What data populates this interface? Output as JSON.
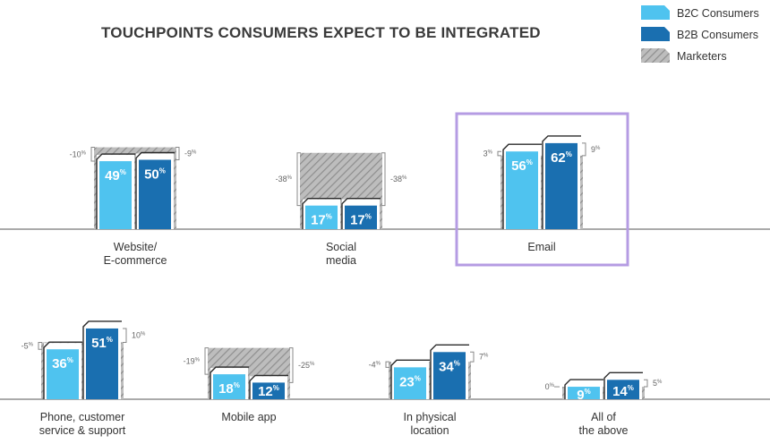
{
  "title": "TOUCHPOINTS CONSUMERS EXPECT TO BE INTEGRATED",
  "colors": {
    "b2c": "#4fc3ef",
    "b2b": "#1a6fb0",
    "marketers_fill": "#bdbdbd",
    "marketers_hatch": "#8e8e8e",
    "highlight": "#b59ce3",
    "axis": "#555555",
    "label": "#333333",
    "diff": "#666666"
  },
  "legend": [
    {
      "key": "b2c",
      "label": "B2C Consumers"
    },
    {
      "key": "b2b",
      "label": "B2B Consumers"
    },
    {
      "key": "marketers",
      "label": "Marketers"
    }
  ],
  "highlighted_category": "Email",
  "chart_data": {
    "type": "bar",
    "title": "TOUCHPOINTS CONSUMERS EXPECT TO BE INTEGRATED",
    "unit": "%",
    "ylim": [
      0,
      70
    ],
    "series": [
      {
        "name": "B2C Consumers",
        "key": "b2c",
        "values": [
          49,
          17,
          56,
          36,
          18,
          23,
          9
        ]
      },
      {
        "name": "B2B Consumers",
        "key": "b2b",
        "values": [
          50,
          17,
          62,
          51,
          12,
          34,
          14
        ]
      },
      {
        "name": "Marketers",
        "key": "marketers",
        "values": [
          59,
          55,
          53,
          41,
          37,
          27,
          9
        ]
      }
    ],
    "categories": [
      {
        "lines": [
          "Website/",
          "E-commerce"
        ],
        "b2c": 49,
        "b2b": 50,
        "marketers": 59,
        "diff_b2c": "-10",
        "diff_b2b": "-9"
      },
      {
        "lines": [
          "Social",
          "media"
        ],
        "b2c": 17,
        "b2b": 17,
        "marketers": 55,
        "diff_b2c": "-38",
        "diff_b2b": "-38"
      },
      {
        "lines": [
          "Email"
        ],
        "b2c": 56,
        "b2b": 62,
        "marketers": 53,
        "diff_b2c": "3",
        "diff_b2b": "9"
      },
      {
        "lines": [
          "Phone, customer",
          "service & support"
        ],
        "b2c": 36,
        "b2b": 51,
        "marketers": 41,
        "diff_b2c": "-5",
        "diff_b2b": "10"
      },
      {
        "lines": [
          "Mobile app"
        ],
        "b2c": 18,
        "b2b": 12,
        "marketers": 37,
        "diff_b2c": "-19",
        "diff_b2b": "-25"
      },
      {
        "lines": [
          "In physical",
          "location"
        ],
        "b2c": 23,
        "b2b": 34,
        "marketers": 27,
        "diff_b2c": "-4",
        "diff_b2b": "7"
      },
      {
        "lines": [
          "All of",
          "the above"
        ],
        "b2c": 9,
        "b2b": 14,
        "marketers": 9,
        "diff_b2c": "0",
        "diff_b2b": "5"
      }
    ]
  }
}
